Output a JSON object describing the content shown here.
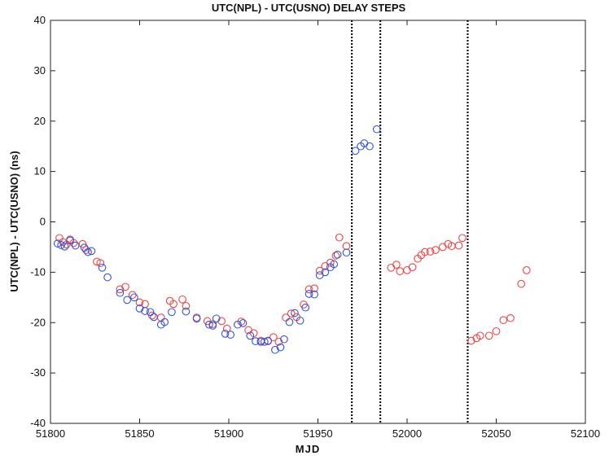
{
  "chart_data": {
    "type": "scatter",
    "title": "UTC(NPL) - UTC(USNO) DELAY STEPS",
    "xlabel": "MJD",
    "ylabel": "UTC(NPL) - UTC(USNO) (ns)",
    "xlim": [
      51800,
      52100
    ],
    "ylim": [
      -40,
      40
    ],
    "xticks": [
      51800,
      51850,
      51900,
      51950,
      52000,
      52050,
      52100
    ],
    "yticks": [
      -40,
      -30,
      -20,
      -10,
      0,
      10,
      20,
      30,
      40
    ],
    "grid": false,
    "marker": "circle-open",
    "series": [
      {
        "color": "#ee4444",
        "points": [
          [
            51805,
            -3.2
          ],
          [
            51807,
            -4.0
          ],
          [
            51809,
            -4.5
          ],
          [
            51811,
            -3.5
          ],
          [
            51813,
            -4.2
          ],
          [
            51818,
            -4.4
          ],
          [
            51820,
            -5.6
          ],
          [
            51826,
            -7.9
          ],
          [
            51828,
            -8.2
          ],
          [
            51839,
            -13.4
          ],
          [
            51842,
            -12.9
          ],
          [
            51846,
            -14.5
          ],
          [
            51850,
            -16.0
          ],
          [
            51853,
            -16.3
          ],
          [
            51857,
            -18.6
          ],
          [
            51862,
            -19.0
          ],
          [
            51867,
            -15.7
          ],
          [
            51869,
            -16.3
          ],
          [
            51874,
            -15.4
          ],
          [
            51876,
            -16.7
          ],
          [
            51882,
            -19.0
          ],
          [
            51888,
            -19.7
          ],
          [
            51891,
            -20.3
          ],
          [
            51896,
            -19.7
          ],
          [
            51899,
            -21.2
          ],
          [
            51907,
            -19.8
          ],
          [
            51911,
            -21.5
          ],
          [
            51914,
            -22.1
          ],
          [
            51918,
            -23.6
          ],
          [
            51922,
            -23.7
          ],
          [
            51925,
            -22.9
          ],
          [
            51928,
            -23.8
          ],
          [
            51932,
            -19.0
          ],
          [
            51935,
            -18.2
          ],
          [
            51938,
            -18.9
          ],
          [
            51942,
            -16.4
          ],
          [
            51945,
            -13.4
          ],
          [
            51948,
            -13.2
          ],
          [
            51951,
            -9.7
          ],
          [
            51954,
            -8.8
          ],
          [
            51957,
            -8.1
          ],
          [
            51960,
            -6.7
          ],
          [
            51962,
            -3.1
          ],
          [
            51966,
            -4.8
          ],
          [
            51991,
            -9.1
          ],
          [
            51994,
            -8.5
          ],
          [
            51996,
            -9.8
          ],
          [
            52000,
            -9.6
          ],
          [
            52003,
            -9.0
          ],
          [
            52006,
            -7.3
          ],
          [
            52008,
            -6.6
          ],
          [
            52010,
            -6.0
          ],
          [
            52013,
            -5.9
          ],
          [
            52016,
            -5.6
          ],
          [
            52020,
            -5.0
          ],
          [
            52023,
            -4.4
          ],
          [
            52025,
            -4.8
          ],
          [
            52029,
            -4.7
          ],
          [
            52031,
            -3.2
          ],
          [
            52036,
            -23.6
          ],
          [
            52039,
            -23.1
          ],
          [
            52041,
            -22.6
          ],
          [
            52046,
            -22.6
          ],
          [
            52050,
            -21.7
          ],
          [
            52054,
            -19.5
          ],
          [
            52058,
            -19.1
          ],
          [
            52064,
            -12.3
          ],
          [
            52067,
            -9.6
          ]
        ]
      },
      {
        "color": "#3355dd",
        "points": [
          [
            51804,
            -4.3
          ],
          [
            51806,
            -4.6
          ],
          [
            51808,
            -4.9
          ],
          [
            51811,
            -3.7
          ],
          [
            51814,
            -4.7
          ],
          [
            51819,
            -5.1
          ],
          [
            51821,
            -6.0
          ],
          [
            51823,
            -5.8
          ],
          [
            51829,
            -9.1
          ],
          [
            51832,
            -11.0
          ],
          [
            51839,
            -14.1
          ],
          [
            51843,
            -15.5
          ],
          [
            51847,
            -15.0
          ],
          [
            51850,
            -17.2
          ],
          [
            51853,
            -17.7
          ],
          [
            51856,
            -17.9
          ],
          [
            51858,
            -18.9
          ],
          [
            51862,
            -20.4
          ],
          [
            51864,
            -19.9
          ],
          [
            51868,
            -17.9
          ],
          [
            51876,
            -17.8
          ],
          [
            51882,
            -19.2
          ],
          [
            51889,
            -20.4
          ],
          [
            51891,
            -20.6
          ],
          [
            51893,
            -19.2
          ],
          [
            51898,
            -22.2
          ],
          [
            51901,
            -22.4
          ],
          [
            51905,
            -20.4
          ],
          [
            51908,
            -20.1
          ],
          [
            51912,
            -22.6
          ],
          [
            51915,
            -23.7
          ],
          [
            51918,
            -23.8
          ],
          [
            51920,
            -23.8
          ],
          [
            51922,
            -23.6
          ],
          [
            51926,
            -25.4
          ],
          [
            51929,
            -24.9
          ],
          [
            51931,
            -23.3
          ],
          [
            51934,
            -19.9
          ],
          [
            51937,
            -18.1
          ],
          [
            51940,
            -19.6
          ],
          [
            51943,
            -17.0
          ],
          [
            51945,
            -14.3
          ],
          [
            51948,
            -14.4
          ],
          [
            51951,
            -10.6
          ],
          [
            51954,
            -10.0
          ],
          [
            51957,
            -9.0
          ],
          [
            51959,
            -8.4
          ],
          [
            51961,
            -6.5
          ],
          [
            51966,
            -6.1
          ],
          [
            51971,
            14.1
          ],
          [
            51974,
            15.0
          ],
          [
            51976,
            15.6
          ],
          [
            51979,
            15.0
          ],
          [
            51983,
            18.4
          ]
        ]
      }
    ],
    "delay_steps": [
      51969,
      51985,
      52034
    ]
  }
}
